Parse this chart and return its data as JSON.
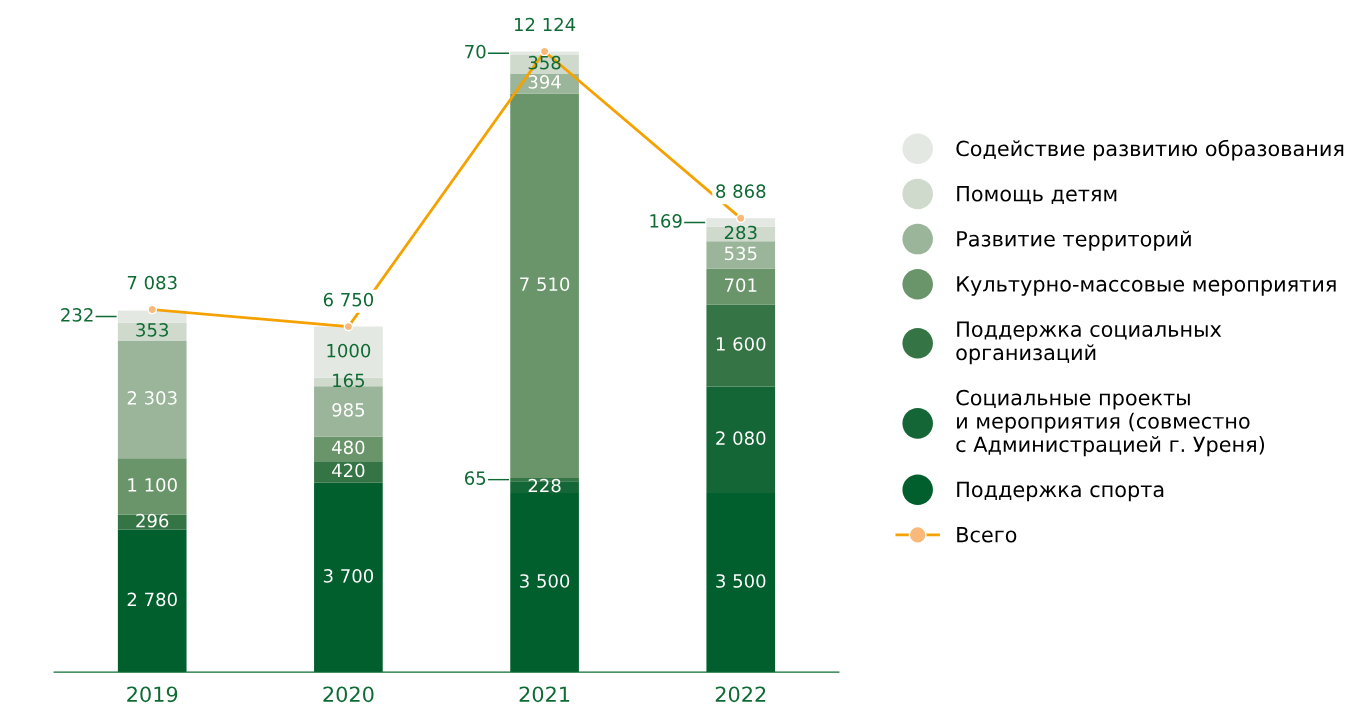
{
  "chart_data": {
    "type": "bar",
    "stacked": true,
    "categories": [
      "2019",
      "2020",
      "2021",
      "2022"
    ],
    "series": [
      {
        "name": "Поддержка спорта",
        "color": "#005f2d",
        "values": [
          2780,
          3700,
          3500,
          3500
        ],
        "value_labels": [
          "2 780",
          "3 700",
          "3 500",
          "3 500"
        ]
      },
      {
        "name": "Социальные проекты\nи мероприятия (совместно\nс Администрацией г. Уреня)",
        "color": "#156636",
        "values": [
          null,
          null,
          228,
          2080
        ],
        "value_labels": [
          null,
          null,
          "228",
          "2 080"
        ]
      },
      {
        "name": "Поддержка социальных\nорганизаций",
        "color": "#357545",
        "values": [
          296,
          420,
          65,
          1600
        ],
        "value_labels": [
          "296",
          "420",
          "65",
          "1 600"
        ]
      },
      {
        "name": "Культурно-массовые мероприятия",
        "color": "#6a9469",
        "values": [
          1100,
          480,
          7510,
          701
        ],
        "value_labels": [
          "1 100",
          "480",
          "7 510",
          "701"
        ]
      },
      {
        "name": "Развитие территорий",
        "color": "#9ab599",
        "values": [
          2303,
          985,
          394,
          535
        ],
        "value_labels": [
          "2 303",
          "985",
          "394",
          "535"
        ]
      },
      {
        "name": "Помощь детям",
        "color": "#cfdacd",
        "values": [
          353,
          165,
          358,
          283
        ],
        "value_labels": [
          "353",
          "165",
          "358",
          "283"
        ]
      },
      {
        "name": "Содействие развитию образования",
        "color": "#e3e9e2",
        "values": [
          232,
          1000,
          70,
          169
        ],
        "value_labels": [
          "232",
          "1000",
          "70",
          "169"
        ]
      },
      {
        "name": "Всего",
        "type": "line",
        "color": "#f5a100",
        "values": [
          7083,
          6750,
          12124,
          8868
        ],
        "value_labels": [
          "7 083",
          "6 750",
          "12 124",
          "8 868"
        ],
        "marker": "circle"
      }
    ],
    "legend": "right",
    "tick_labels": "x",
    "grid": false
  }
}
